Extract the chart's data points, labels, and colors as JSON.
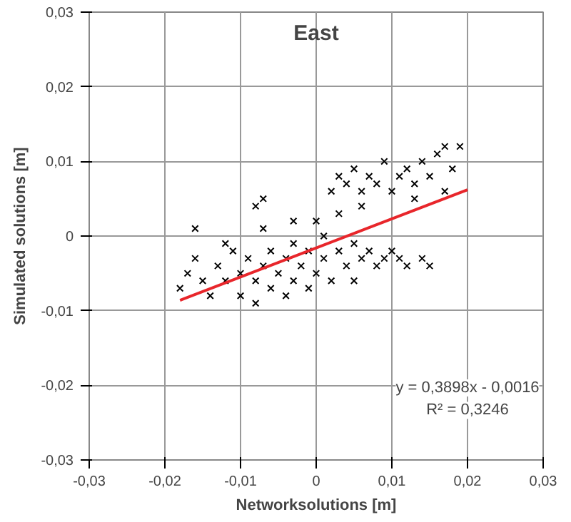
{
  "chart_data": {
    "type": "scatter",
    "title": "East",
    "xlabel": "Networksolutions [m]",
    "ylabel": "Simulated solutions [m]",
    "xlim": [
      -0.03,
      0.03
    ],
    "ylim": [
      -0.03,
      0.03
    ],
    "xticks": [
      {
        "value": -0.03,
        "label": "-0,03"
      },
      {
        "value": -0.02,
        "label": "-0,02"
      },
      {
        "value": -0.01,
        "label": "-0,01"
      },
      0,
      {
        "value": 0.01,
        "label": "0,01"
      },
      {
        "value": 0.02,
        "label": "0,02"
      },
      {
        "value": 0.03,
        "label": "0,03"
      }
    ],
    "yticks": [
      {
        "value": -0.03,
        "label": "-0,03"
      },
      {
        "value": -0.02,
        "label": "-0,02"
      },
      {
        "value": -0.01,
        "label": "-0,01"
      },
      0,
      {
        "value": 0.01,
        "label": "0,01"
      },
      {
        "value": 0.02,
        "label": "0,02"
      },
      {
        "value": 0.03,
        "label": "0,03"
      }
    ],
    "grid": true,
    "marker": "cross",
    "series": [
      {
        "color": "#000000",
        "x": [
          -0.018,
          -0.017,
          -0.016,
          -0.015,
          -0.014,
          -0.013,
          -0.012,
          -0.011,
          -0.01,
          -0.01,
          -0.009,
          -0.008,
          -0.008,
          -0.007,
          -0.006,
          -0.006,
          -0.005,
          -0.004,
          -0.004,
          -0.003,
          -0.003,
          -0.002,
          -0.001,
          -0.001,
          0.0,
          0.001,
          0.001,
          0.002,
          0.003,
          0.004,
          0.005,
          0.005,
          0.006,
          0.007,
          0.008,
          0.009,
          0.01,
          0.011,
          0.012,
          0.014,
          0.015,
          -0.016,
          -0.012,
          -0.007,
          -0.003,
          0.0,
          0.003,
          0.002,
          0.003,
          0.004,
          0.005,
          0.006,
          0.007,
          0.008,
          0.009,
          0.01,
          0.011,
          0.012,
          0.013,
          0.014,
          0.015,
          0.016,
          0.017,
          0.018,
          0.019,
          0.013,
          0.017,
          -0.007,
          -0.008,
          0.006
        ],
        "values": [
          -0.007,
          -0.005,
          -0.003,
          -0.006,
          -0.008,
          -0.004,
          -0.006,
          -0.002,
          -0.005,
          -0.008,
          -0.003,
          -0.006,
          -0.009,
          -0.004,
          -0.002,
          -0.007,
          -0.005,
          -0.003,
          -0.008,
          -0.001,
          -0.006,
          -0.004,
          -0.002,
          -0.007,
          -0.005,
          -0.003,
          0.0,
          -0.006,
          -0.002,
          -0.004,
          -0.001,
          -0.006,
          -0.003,
          -0.002,
          -0.004,
          -0.003,
          -0.002,
          -0.003,
          -0.004,
          -0.003,
          -0.004,
          0.001,
          -0.001,
          0.001,
          0.002,
          0.002,
          0.003,
          0.006,
          0.008,
          0.007,
          0.009,
          0.006,
          0.008,
          0.007,
          0.01,
          0.006,
          0.008,
          0.009,
          0.007,
          0.01,
          0.008,
          0.011,
          0.012,
          0.009,
          0.012,
          0.005,
          0.006,
          0.005,
          0.004,
          0.004
        ]
      },
      {
        "type": "line",
        "marker": "none",
        "color": "#e8262b",
        "x": [
          -0.018,
          0.02
        ],
        "values": [
          -0.0086,
          0.0062
        ]
      }
    ],
    "annotations": [
      "y = 0,3898x - 0,0016",
      "R² = 0,3246"
    ]
  }
}
